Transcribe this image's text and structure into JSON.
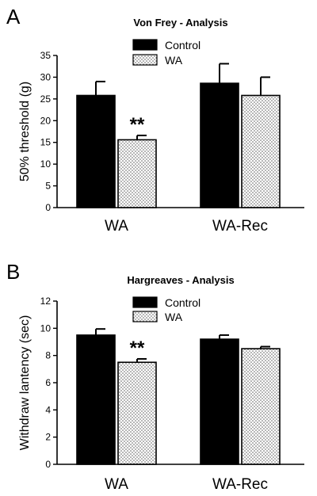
{
  "chart_data": [
    {
      "type": "bar",
      "panel_label": "A",
      "title": "Von Frey - Analysis",
      "ylabel": "50% threshold (g)",
      "xlabel": "",
      "categories": [
        "WA",
        "WA-Rec"
      ],
      "ylim": [
        0,
        35
      ],
      "yticks": [
        0,
        5,
        10,
        15,
        20,
        25,
        30,
        35
      ],
      "grid": false,
      "legend_position": "top-center",
      "series": [
        {
          "name": "Control",
          "values": [
            25.8,
            28.6
          ],
          "errors": [
            3.2,
            4.5
          ],
          "fill": "solid-black"
        },
        {
          "name": "WA",
          "values": [
            15.6,
            25.8
          ],
          "errors": [
            1.0,
            4.2
          ],
          "fill": "dotted"
        }
      ],
      "annotations": [
        {
          "category": "WA",
          "series": "WA",
          "text": "**"
        }
      ]
    },
    {
      "type": "bar",
      "panel_label": "B",
      "title": "Hargreaves - Analysis",
      "ylabel": "Withdraw lantency (sec)",
      "xlabel": "",
      "categories": [
        "WA",
        "WA-Rec"
      ],
      "ylim": [
        0,
        12
      ],
      "yticks": [
        0,
        2,
        4,
        6,
        8,
        10,
        12
      ],
      "grid": false,
      "legend_position": "top-center",
      "series": [
        {
          "name": "Control",
          "values": [
            9.5,
            9.2
          ],
          "errors": [
            0.45,
            0.3
          ],
          "fill": "solid-black"
        },
        {
          "name": "WA",
          "values": [
            7.5,
            8.5
          ],
          "errors": [
            0.25,
            0.15
          ],
          "fill": "dotted"
        }
      ],
      "annotations": [
        {
          "category": "WA",
          "series": "WA",
          "text": "**"
        }
      ]
    }
  ]
}
